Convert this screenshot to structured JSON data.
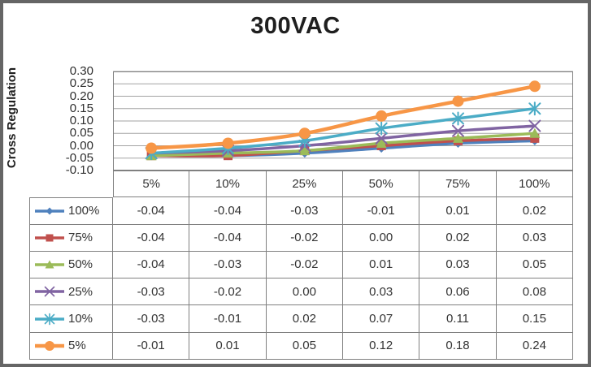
{
  "chart_data": {
    "type": "line",
    "title": "300VAC",
    "ylabel": "Cross Regulation",
    "xlabel": "",
    "categories": [
      "5%",
      "10%",
      "25%",
      "50%",
      "75%",
      "100%"
    ],
    "series": [
      {
        "name": "100%",
        "marker": "diamond",
        "color": "#4F81BD",
        "values": [
          -0.04,
          -0.04,
          -0.03,
          -0.01,
          0.01,
          0.02
        ]
      },
      {
        "name": "75%",
        "marker": "square",
        "color": "#C0504D",
        "values": [
          -0.04,
          -0.04,
          -0.02,
          0.0,
          0.02,
          0.03
        ]
      },
      {
        "name": "50%",
        "marker": "triangle",
        "color": "#9BBB59",
        "values": [
          -0.04,
          -0.03,
          -0.02,
          0.01,
          0.03,
          0.05
        ]
      },
      {
        "name": "25%",
        "marker": "x",
        "color": "#8064A2",
        "values": [
          -0.03,
          -0.02,
          0.0,
          0.03,
          0.06,
          0.08
        ]
      },
      {
        "name": "10%",
        "marker": "star",
        "color": "#4BACC6",
        "values": [
          -0.03,
          -0.01,
          0.02,
          0.07,
          0.11,
          0.15
        ]
      },
      {
        "name": "5%",
        "marker": "circle",
        "color": "#F79646",
        "values": [
          -0.01,
          0.01,
          0.05,
          0.12,
          0.18,
          0.24
        ]
      }
    ],
    "y_ticks": [
      0.3,
      0.25,
      0.2,
      0.15,
      0.1,
      0.05,
      0.0,
      -0.05,
      -0.1
    ],
    "ylim": [
      -0.1,
      0.3
    ],
    "grid": true,
    "data_table_shown": true,
    "legend_position": "table-left",
    "value_format": "0.00",
    "colors": {
      "plot_border": "#808080",
      "gridline": "#a3a3a3",
      "table_border": "#808080",
      "frame_border": "#656565"
    }
  }
}
